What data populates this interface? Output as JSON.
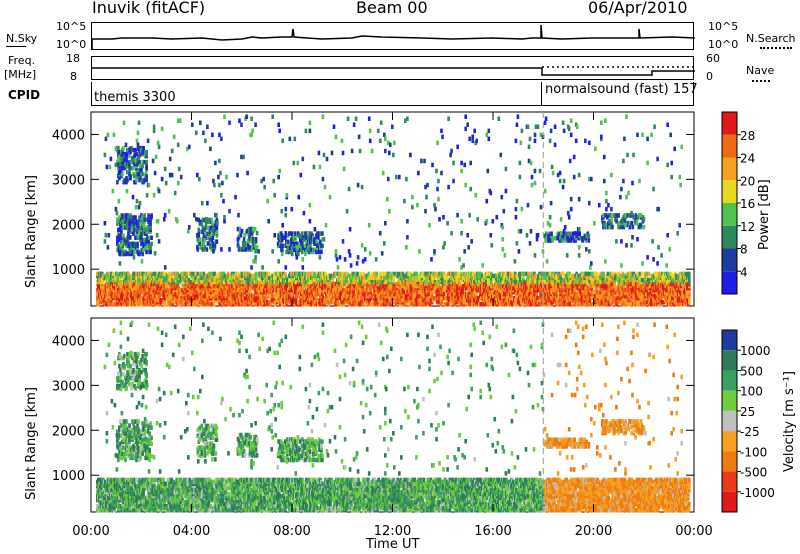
{
  "header": {
    "station": "Inuvik (fitACF)",
    "beam": "Beam 00",
    "date": "06/Apr/2010"
  },
  "strip_panels": {
    "noise": {
      "left_label": "N.Sky",
      "right_label": "N.Search",
      "ticks_left": [
        "10^5",
        "10^0"
      ],
      "ticks_right": [
        "10^5",
        "10^0"
      ]
    },
    "freq": {
      "left_label_1": "Freq.",
      "left_label_2": "[MHz]",
      "right_label": "Nave",
      "ticks_left": [
        "18",
        "8"
      ],
      "ticks_right": [
        "60",
        "0"
      ]
    },
    "cpid": {
      "label": "CPID",
      "mode_1": "themis 3300",
      "mode_2": "normalsound (fast) 157"
    }
  },
  "chart_data": [
    {
      "type": "heatmap",
      "title": "",
      "xlabel": "Time UT",
      "ylabel": "Slant Range [km]",
      "x_ticks": [
        "00:00",
        "04:00",
        "08:00",
        "12:00",
        "16:00",
        "20:00",
        "00:00"
      ],
      "y_ticks": [
        "1000",
        "2000",
        "3000",
        "4000"
      ],
      "ylim": [
        180,
        4500
      ],
      "colorbar": {
        "label": "Power [dB]",
        "ticks": [
          "4",
          "8",
          "12",
          "16",
          "20",
          "24",
          "28"
        ],
        "colors": [
          "#1e1ee6",
          "#1e3ca0",
          "#2e8a5a",
          "#4fc24f",
          "#e8d81e",
          "#f5a01e",
          "#ee6a14",
          "#e01a1a"
        ]
      }
    },
    {
      "type": "heatmap",
      "title": "",
      "xlabel": "Time UT",
      "ylabel": "Slant Range [km]",
      "x_ticks": [
        "00:00",
        "04:00",
        "08:00",
        "12:00",
        "16:00",
        "20:00",
        "00:00"
      ],
      "y_ticks": [
        "1000",
        "2000",
        "3000",
        "4000"
      ],
      "ylim": [
        180,
        4500
      ],
      "colorbar": {
        "label": "Velocity [m s⁻¹]",
        "ticks": [
          "1000",
          "500",
          "100",
          "25",
          "-25",
          "-100",
          "-500",
          "-1000"
        ],
        "colors": [
          "#1e3ca0",
          "#2e7a5a",
          "#3aa060",
          "#6ccc3c",
          "#c0c0c0",
          "#f5a01e",
          "#ee7a14",
          "#e83a14",
          "#e01a1a"
        ]
      }
    }
  ],
  "axis": {
    "time_label": "Time UT"
  }
}
